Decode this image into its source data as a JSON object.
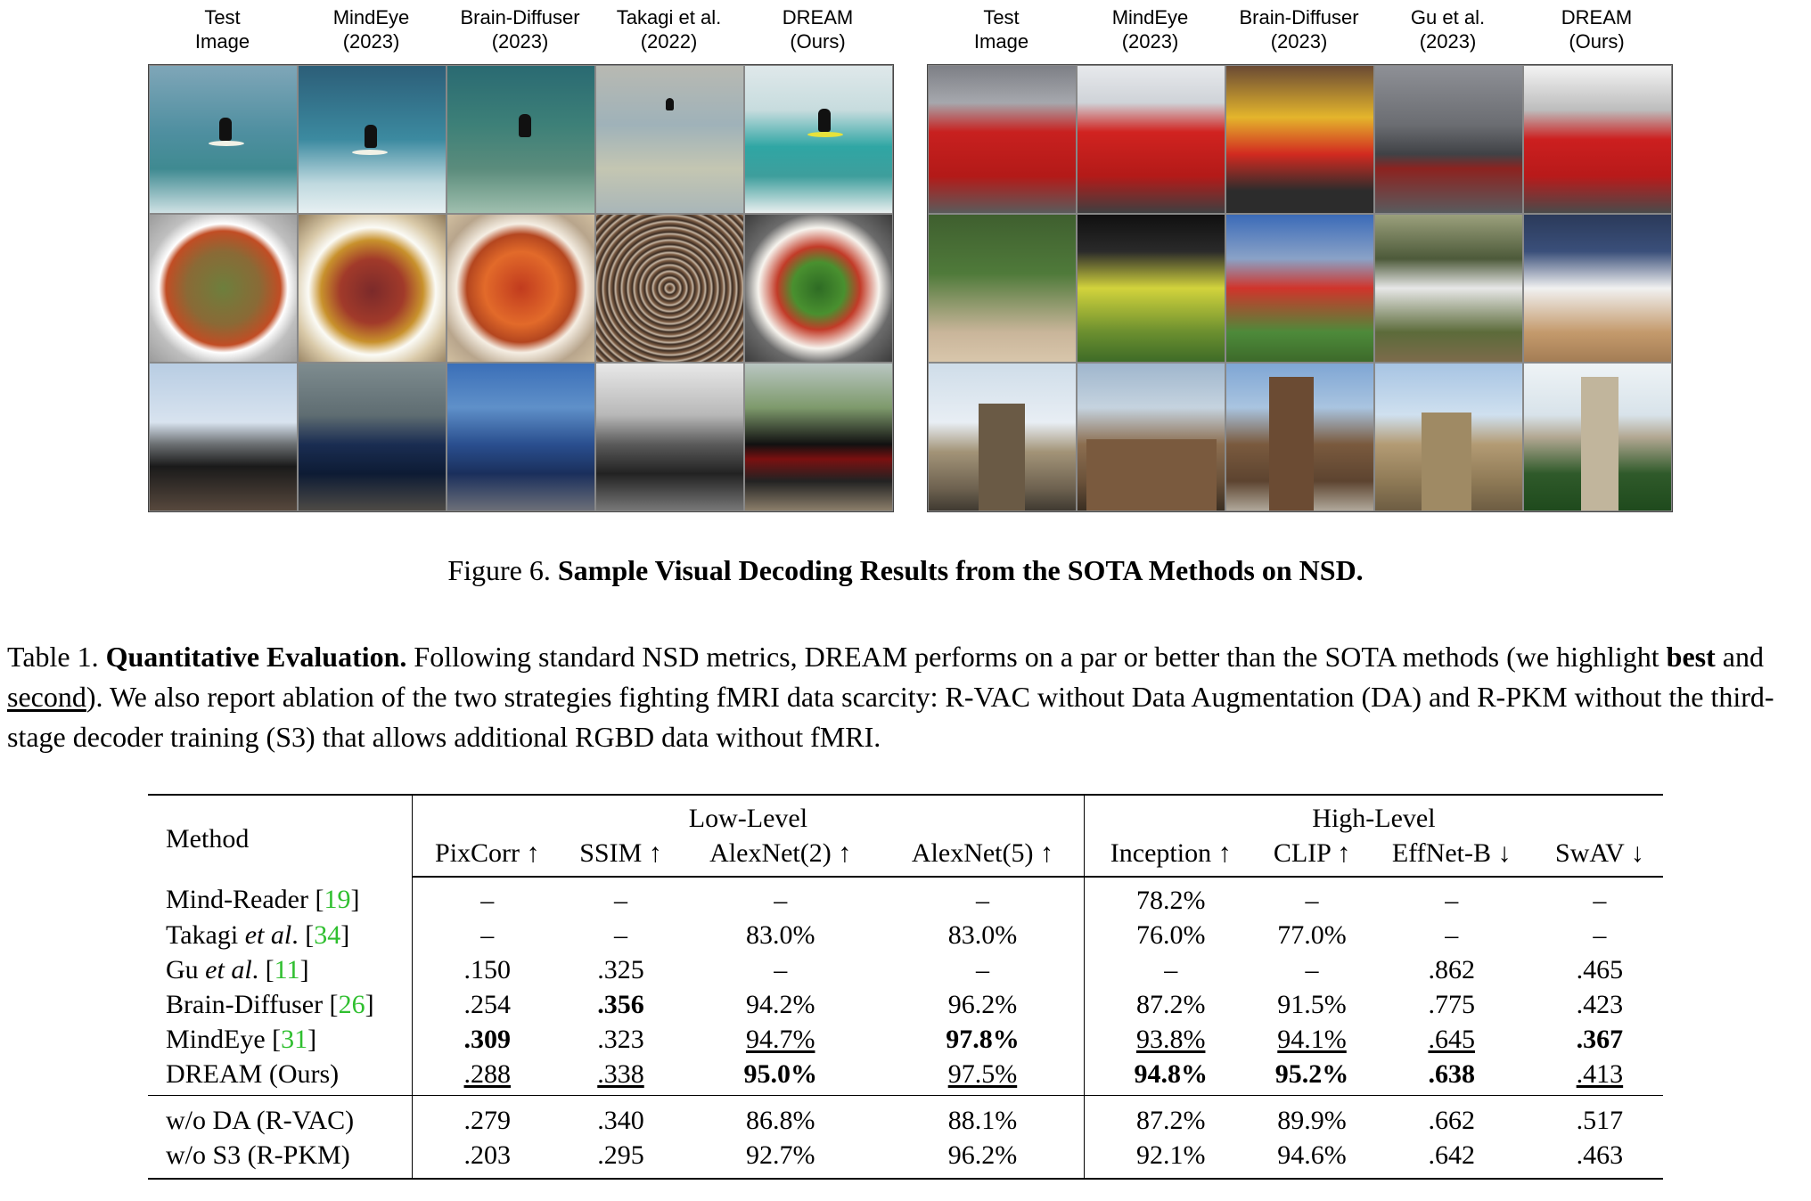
{
  "figure": {
    "left_panel": {
      "columns": [
        {
          "line1": "Test",
          "line2": "Image"
        },
        {
          "line1": "MindEye",
          "line2": "(2023)"
        },
        {
          "line1": "Brain-Diffuser",
          "line2": "(2023)"
        },
        {
          "line1": "Takagi et al.",
          "line2": "(2022)"
        },
        {
          "line1": "DREAM",
          "line2": "(Ours)"
        }
      ],
      "rows": [
        "surf",
        "food",
        "train"
      ]
    },
    "right_panel": {
      "columns": [
        {
          "line1": "Test",
          "line2": "Image"
        },
        {
          "line1": "MindEye",
          "line2": "(2023)"
        },
        {
          "line1": "Brain-Diffuser",
          "line2": "(2023)"
        },
        {
          "line1": "Gu et al.",
          "line2": "(2023)"
        },
        {
          "line1": "DREAM",
          "line2": "(Ours)"
        }
      ],
      "rows": [
        "bus",
        "ball",
        "tower"
      ]
    },
    "caption": {
      "label": "Figure 6.",
      "title": "Sample Visual Decoding Results from the SOTA Methods on NSD."
    }
  },
  "table_caption": {
    "label": "Table 1.",
    "title": "Quantitative Evaluation.",
    "text1": "Following standard NSD metrics, DREAM performs on a par or better than the SOTA methods (we highlight",
    "best": "best",
    "and": "and",
    "second": "second",
    "text2": "). We also report ablation of the two strategies fighting fMRI data scarcity: R-VAC without Data Augmentation (DA) and R-PKM without the third-stage decoder training (S3) that allows additional RGBD data without fMRI."
  },
  "table": {
    "method_header": "Method",
    "group_low": "Low-Level",
    "group_high": "High-Level",
    "columns": [
      "PixCorr ↑",
      "SSIM ↑",
      "AlexNet(2) ↑",
      "AlexNet(5) ↑",
      "Inception ↑",
      "CLIP ↑",
      "EffNet-B ↓",
      "SwAV ↓"
    ],
    "rows": [
      {
        "name": "Mind-Reader [",
        "italic": "",
        "tail": "",
        "ref": "19",
        "close": "]",
        "cells": [
          "–",
          "–",
          "–",
          "–",
          "78.2%",
          "–",
          "–",
          "–"
        ],
        "best": [],
        "second": []
      },
      {
        "name": "Takagi ",
        "italic": "et al",
        "tail": ". [",
        "ref": "34",
        "close": "]",
        "cells": [
          "–",
          "–",
          "83.0%",
          "83.0%",
          "76.0%",
          "77.0%",
          "–",
          "–"
        ],
        "best": [],
        "second": []
      },
      {
        "name": "Gu ",
        "italic": "et al",
        "tail": ".  [",
        "ref": "11",
        "close": "]",
        "cells": [
          ".150",
          ".325",
          "–",
          "–",
          "–",
          "–",
          ".862",
          ".465"
        ],
        "best": [],
        "second": []
      },
      {
        "name": "Brain-Diffuser [",
        "italic": "",
        "tail": "",
        "ref": "26",
        "close": "]",
        "cells": [
          ".254",
          ".356",
          "94.2%",
          "96.2%",
          "87.2%",
          "91.5%",
          ".775",
          ".423"
        ],
        "best": [
          1
        ],
        "second": []
      },
      {
        "name": "MindEye [",
        "italic": "",
        "tail": "",
        "ref": "31",
        "close": "]",
        "cells": [
          ".309",
          ".323",
          "94.7%",
          "97.8%",
          "93.8%",
          "94.1%",
          ".645",
          ".367"
        ],
        "best": [
          0,
          3,
          7
        ],
        "second": [
          2,
          4,
          5,
          6
        ]
      },
      {
        "name": "DREAM (Ours)",
        "italic": "",
        "tail": "",
        "ref": "",
        "close": "",
        "cells": [
          ".288",
          ".338",
          "95.0%",
          "97.5%",
          "94.8%",
          "95.2%",
          ".638",
          ".413"
        ],
        "best": [
          2,
          4,
          5,
          6
        ],
        "second": [
          0,
          1,
          3,
          7
        ]
      }
    ],
    "ablation_rows": [
      {
        "name": "w/o DA (R-VAC)",
        "cells": [
          ".279",
          ".340",
          "86.8%",
          "88.1%",
          "87.2%",
          "89.9%",
          ".662",
          ".517"
        ]
      },
      {
        "name": "w/o S3 (R-PKM)",
        "cells": [
          ".203",
          ".295",
          "92.7%",
          "96.2%",
          "92.1%",
          "94.6%",
          ".642",
          ".463"
        ]
      }
    ]
  }
}
